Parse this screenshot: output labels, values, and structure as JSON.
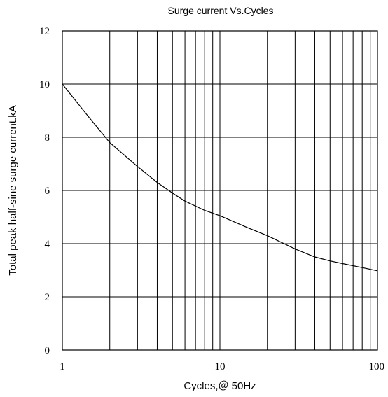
{
  "chart_data": {
    "type": "line",
    "title": "Surge current  Vs.Cycles",
    "xlabel": "Cycles,＠ 50Hz",
    "ylabel": "Total peak half-sine surge current.kA",
    "xscale": "log",
    "xlim": [
      1,
      100
    ],
    "ylim": [
      0,
      12
    ],
    "grid": true,
    "x_ticks": [
      1,
      10,
      100
    ],
    "x_tick_labels": [
      "1",
      "10",
      "100"
    ],
    "y_ticks": [
      0,
      2,
      4,
      6,
      8,
      10,
      12
    ],
    "y_tick_labels": [
      "0",
      "2",
      "4",
      "6",
      "8",
      "10",
      "12"
    ],
    "series": [
      {
        "x": [
          1,
          1.5,
          2,
          3,
          4,
          5,
          6,
          8,
          10,
          15,
          20,
          30,
          40,
          50,
          60,
          80,
          100
        ],
        "y": [
          10.0,
          8.7,
          7.8,
          6.9,
          6.3,
          5.9,
          5.6,
          5.25,
          5.05,
          4.6,
          4.3,
          3.8,
          3.5,
          3.35,
          3.25,
          3.1,
          2.98
        ]
      }
    ]
  }
}
